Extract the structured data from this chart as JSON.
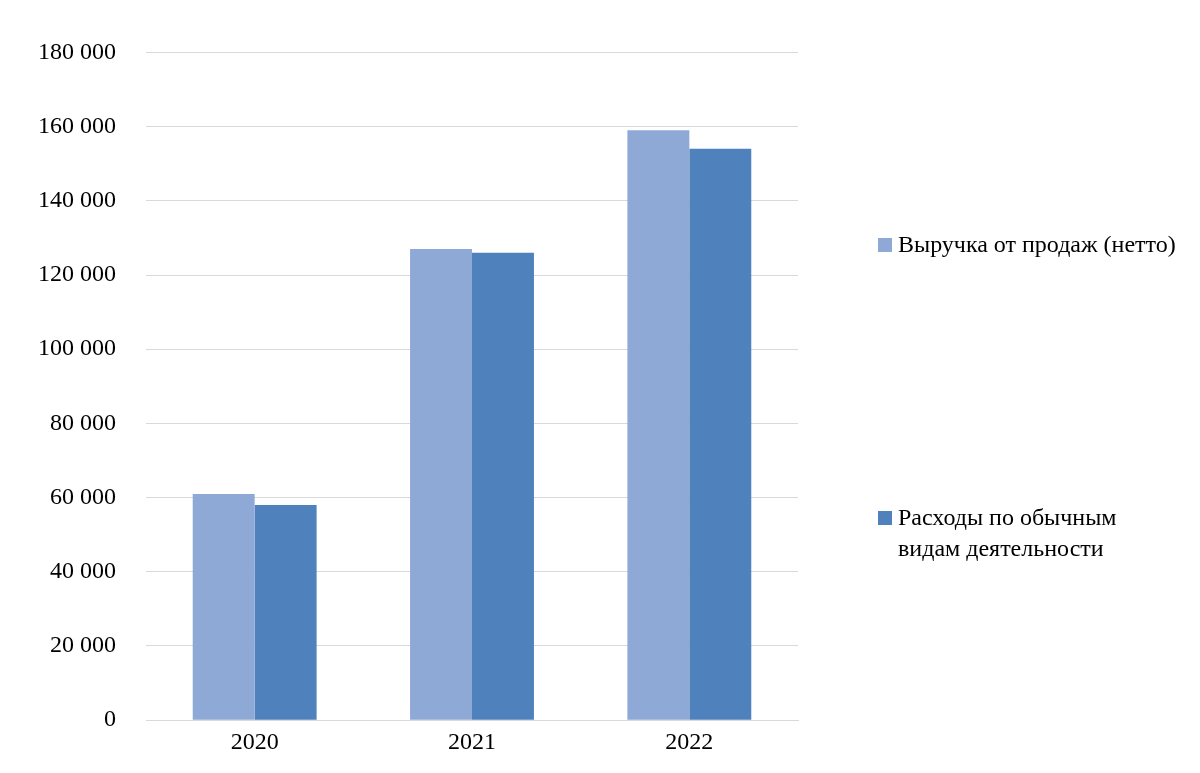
{
  "chart_data": {
    "type": "bar",
    "categories": [
      "2020",
      "2021",
      "2022"
    ],
    "series": [
      {
        "name": "Выручка от продаж (нетто)",
        "color": "#8fa9d6",
        "values": [
          61000,
          127000,
          159000
        ]
      },
      {
        "name": "Расходы по обычным видам деятельности",
        "color": "#4f81bd",
        "values": [
          58000,
          126000,
          154000
        ]
      }
    ],
    "ylim": [
      0,
      180000
    ],
    "yticks": [
      {
        "value": 0,
        "label": "0"
      },
      {
        "value": 20000,
        "label": "20 000"
      },
      {
        "value": 40000,
        "label": "40 000"
      },
      {
        "value": 60000,
        "label": "60 000"
      },
      {
        "value": 80000,
        "label": "80 000"
      },
      {
        "value": 100000,
        "label": "100 000"
      },
      {
        "value": 120000,
        "label": "120 000"
      },
      {
        "value": 140000,
        "label": "140 000"
      },
      {
        "value": 160000,
        "label": "160 000"
      },
      {
        "value": 180000,
        "label": "180 000"
      }
    ],
    "grid": "y",
    "legend": "right"
  }
}
